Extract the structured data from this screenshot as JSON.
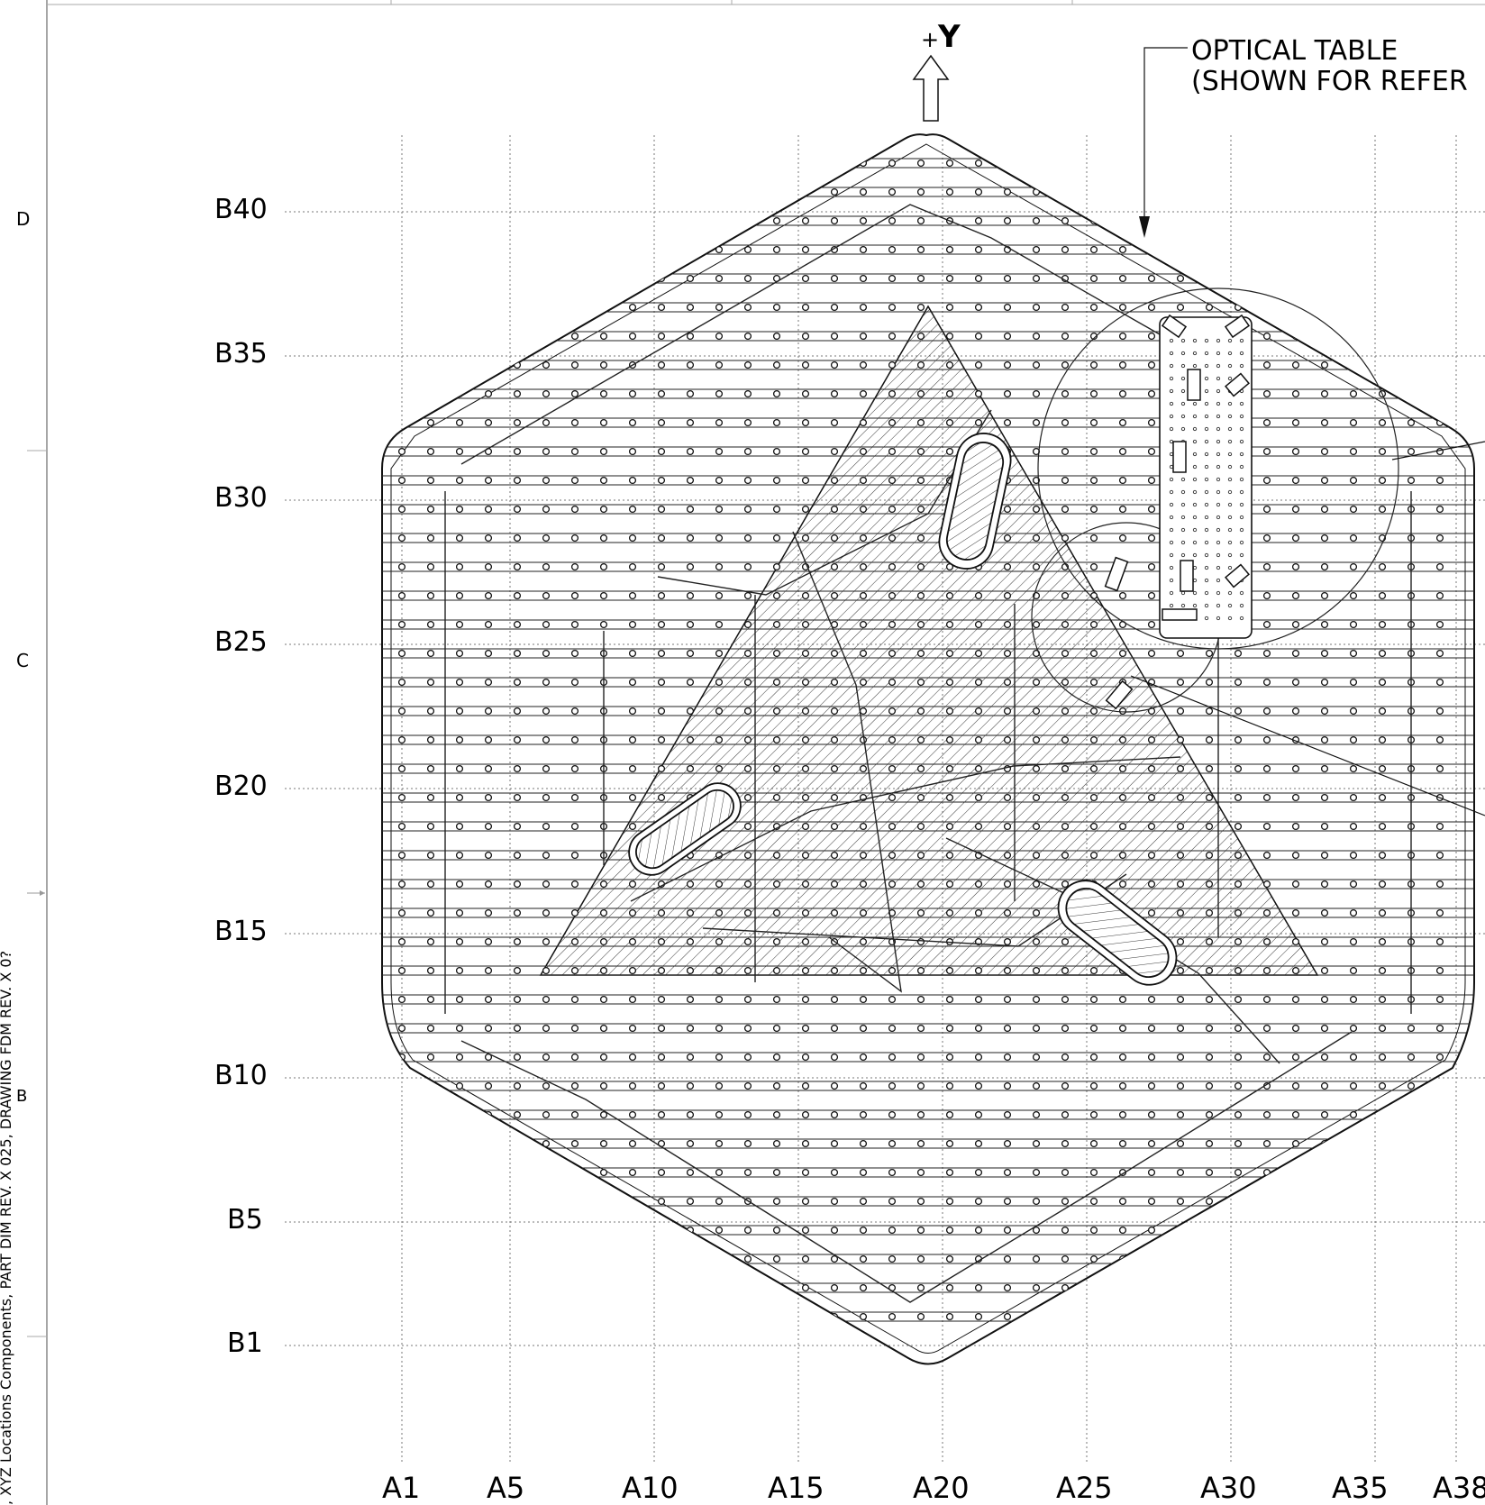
{
  "sheet_zones": [
    "D",
    "C",
    "B"
  ],
  "side_note": ", XYZ Locations Components, PART DIM REV. X 025, DRAWING FDM REV. X 0?",
  "axis_arrow": {
    "prefix": "+",
    "axis": "Y"
  },
  "callout": {
    "line1": "OPTICAL TABLE",
    "line2": "(SHOWN FOR REFER"
  },
  "row_labels": [
    "B40",
    "B35",
    "B30",
    "B25",
    "B20",
    "B15",
    "B10",
    "B5",
    "B1"
  ],
  "col_labels": [
    "A1",
    "A5",
    "A10",
    "A15",
    "A20",
    "A25",
    "A30",
    "A35",
    "A38"
  ],
  "colors": {
    "line": "#111111",
    "grid": "#777777",
    "background": "#ffffff"
  }
}
